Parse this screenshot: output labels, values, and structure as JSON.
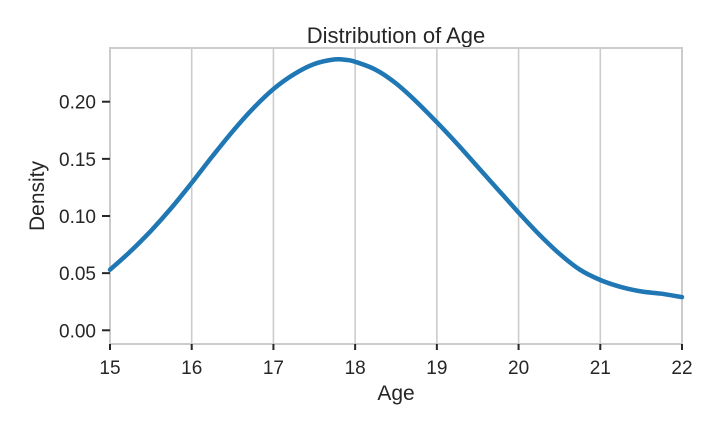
{
  "chart_data": {
    "type": "line",
    "title": "Distribution of Age",
    "xlabel": "Age",
    "ylabel": "Density",
    "xlim": [
      15,
      22
    ],
    "ylim": [
      -0.012,
      0.247
    ],
    "xticks": [
      15,
      16,
      17,
      18,
      19,
      20,
      21,
      22
    ],
    "yticks": [
      0.0,
      0.05,
      0.1,
      0.15,
      0.2
    ],
    "ytick_labels": [
      "0.00",
      "0.05",
      "0.10",
      "0.15",
      "0.20"
    ],
    "grid": "x",
    "series": [
      {
        "color": "#1f77b4",
        "x": [
          15.0,
          15.25,
          15.5,
          15.75,
          16.0,
          16.25,
          16.5,
          16.75,
          17.0,
          17.25,
          17.5,
          17.75,
          17.9,
          18.0,
          18.25,
          18.5,
          18.75,
          19.0,
          19.25,
          19.5,
          19.75,
          20.0,
          20.25,
          20.5,
          20.75,
          21.0,
          21.25,
          21.5,
          21.75,
          22.0
        ],
        "y": [
          0.053,
          0.069,
          0.087,
          0.107,
          0.129,
          0.152,
          0.174,
          0.194,
          0.211,
          0.224,
          0.233,
          0.237,
          0.2365,
          0.235,
          0.228,
          0.216,
          0.2,
          0.182,
          0.163,
          0.143,
          0.123,
          0.103,
          0.084,
          0.067,
          0.053,
          0.044,
          0.038,
          0.034,
          0.032,
          0.029
        ]
      }
    ]
  }
}
